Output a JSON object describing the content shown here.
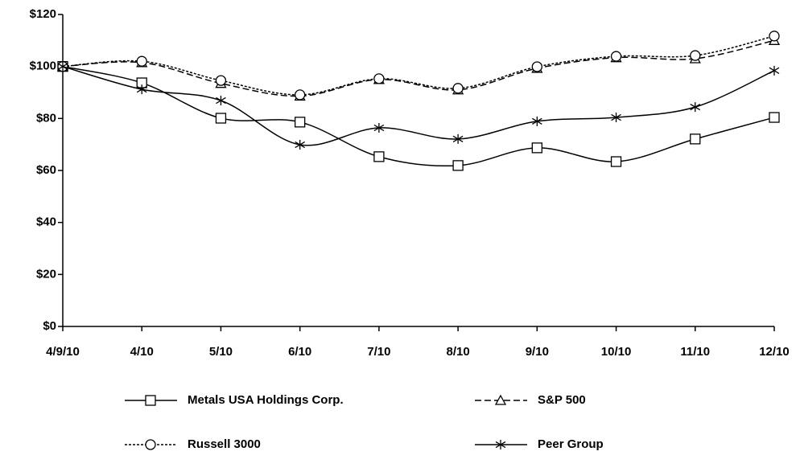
{
  "chart_data": {
    "type": "line",
    "categories": [
      "4/9/10",
      "4/10",
      "5/10",
      "6/10",
      "7/10",
      "8/10",
      "9/10",
      "10/10",
      "11/10",
      "12/10"
    ],
    "series": [
      {
        "name": "Metals USA Holdings  Corp.",
        "color": "#000000",
        "marker": "square",
        "dash": "solid",
        "values": [
          100,
          93.7,
          80.1,
          78.6,
          65.3,
          61.9,
          68.7,
          63.4,
          72.1,
          80.4
        ]
      },
      {
        "name": "S&P 500",
        "color": "#000000",
        "marker": "triangle",
        "dash": "dashed",
        "values": [
          100,
          101.5,
          93.5,
          88.6,
          95,
          91,
          99.3,
          103.4,
          103,
          110
        ]
      },
      {
        "name": "Russell 3000",
        "color": "#000000",
        "marker": "circle",
        "dash": "dotted",
        "values": [
          100,
          102,
          94.6,
          89.1,
          95.3,
          91.6,
          99.9,
          103.9,
          104.2,
          111.7
        ]
      },
      {
        "name": "Peer Group",
        "color": "#000000",
        "marker": "asterisk",
        "dash": "solid",
        "values": [
          100,
          91.2,
          86.9,
          69.9,
          76.4,
          72.1,
          78.9,
          80.4,
          84.4,
          98.4
        ]
      }
    ],
    "ylim": [
      0,
      120
    ],
    "yticks": [
      {
        "value": 0,
        "label": "$0"
      },
      {
        "value": 20,
        "label": "$20"
      },
      {
        "value": 40,
        "label": "$40"
      },
      {
        "value": 60,
        "label": "$60"
      },
      {
        "value": 80,
        "label": "$80"
      },
      {
        "value": 100,
        "label": "$100"
      },
      {
        "value": 120,
        "label": "$120"
      }
    ],
    "grid": false
  }
}
